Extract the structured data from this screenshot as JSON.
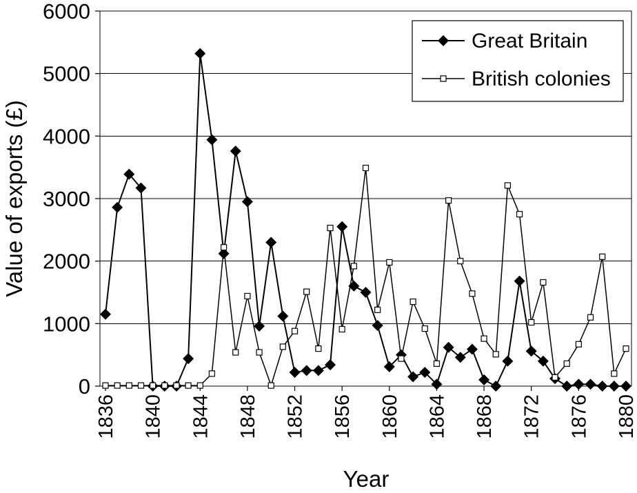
{
  "chart_data": {
    "type": "line",
    "title": "",
    "xlabel": "Year",
    "ylabel": "Value of exports (£)",
    "xlim": [
      1836,
      1880
    ],
    "ylim": [
      0,
      6000
    ],
    "yticks": [
      "0",
      "1000",
      "2000",
      "3000",
      "4000",
      "5000",
      "6000"
    ],
    "xticks": [
      "1836",
      "1840",
      "1844",
      "1848",
      "1852",
      "1856",
      "1860",
      "1864",
      "1868",
      "1872",
      "1876",
      "1880"
    ],
    "grid": true,
    "legend_position": "top-right",
    "x": [
      1836,
      1837,
      1838,
      1839,
      1840,
      1841,
      1842,
      1843,
      1844,
      1845,
      1846,
      1847,
      1848,
      1849,
      1850,
      1851,
      1852,
      1853,
      1854,
      1855,
      1856,
      1857,
      1858,
      1859,
      1860,
      1861,
      1862,
      1863,
      1864,
      1865,
      1866,
      1867,
      1868,
      1869,
      1870,
      1871,
      1872,
      1873,
      1874,
      1875,
      1876,
      1877,
      1878,
      1879,
      1880
    ],
    "series": [
      {
        "name": "Great Britain",
        "marker": "filled-diamond",
        "color": "#000000",
        "values": [
          1150,
          2860,
          3390,
          3170,
          0,
          0,
          0,
          440,
          5320,
          3940,
          2120,
          3760,
          2950,
          960,
          2300,
          1120,
          220,
          250,
          250,
          340,
          2550,
          1600,
          1500,
          970,
          310,
          500,
          150,
          220,
          30,
          620,
          460,
          590,
          100,
          0,
          400,
          1680,
          560,
          400,
          120,
          0,
          30,
          30,
          0,
          0,
          0
        ]
      },
      {
        "name": "British colonies",
        "marker": "open-square",
        "color": "#000000",
        "values": [
          10,
          10,
          10,
          10,
          10,
          10,
          10,
          10,
          10,
          200,
          2220,
          540,
          1440,
          540,
          10,
          630,
          880,
          1510,
          600,
          2530,
          910,
          1920,
          3490,
          1220,
          1980,
          440,
          1350,
          920,
          360,
          2970,
          2000,
          1480,
          760,
          510,
          3210,
          2750,
          1020,
          1660,
          140,
          360,
          670,
          1100,
          2070,
          200,
          600
        ]
      }
    ]
  }
}
